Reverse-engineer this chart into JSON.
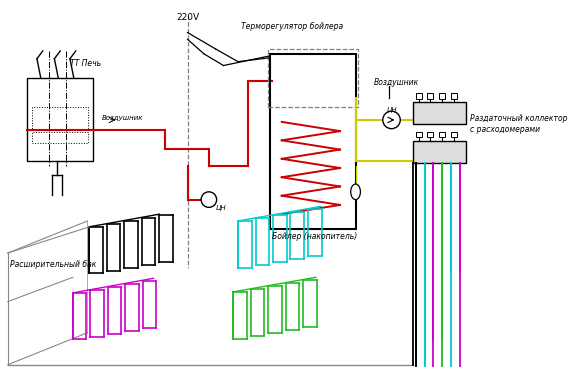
{
  "title_220v": "220V",
  "label_tt_pech": "ТТ Печь",
  "label_vozdushnik1": "Воздушник",
  "label_vozdushnik2": "Воздушник",
  "label_rasshbox": "Расширительный бак",
  "label_termoreg": "Терморегулятор бойлера",
  "label_bojler": "Бойлер (накопитель)",
  "label_razdatok": "Раздаточный коллектор\nс расходомерами",
  "label_cn1": "ЦН",
  "label_cn2": "ЦН",
  "red": "#cc0000",
  "yellow": "#cccc00",
  "black": "#000000",
  "cyan": "#00cccc",
  "magenta": "#cc00cc",
  "green": "#22bb22",
  "gray": "#888888"
}
